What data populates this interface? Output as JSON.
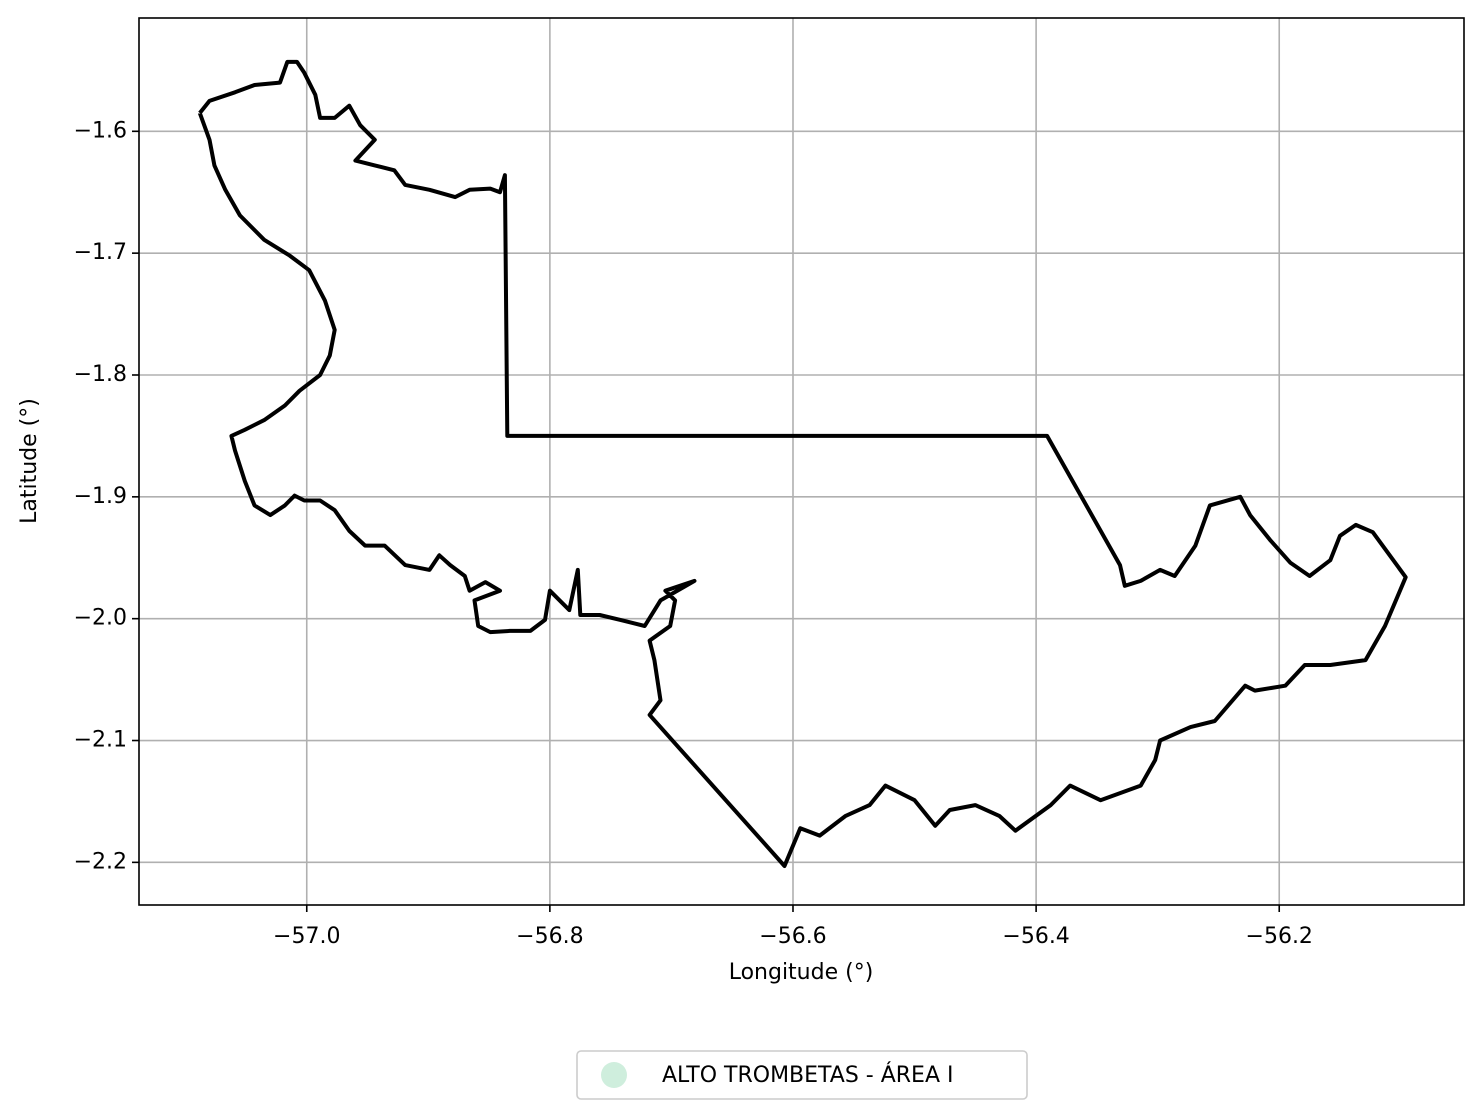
{
  "chart_data": {
    "type": "line",
    "xlabel": "Longitude (°)",
    "ylabel": "Latitude (°)",
    "xlim": [
      -57.138,
      -56.048
    ],
    "ylim": [
      -2.235,
      -1.507
    ],
    "xticks": [
      {
        "value": -57.0,
        "label": "−57.0"
      },
      {
        "value": -56.8,
        "label": "−56.8"
      },
      {
        "value": -56.6,
        "label": "−56.6"
      },
      {
        "value": -56.4,
        "label": "−56.4"
      },
      {
        "value": -56.2,
        "label": "−56.2"
      }
    ],
    "yticks": [
      {
        "value": -1.6,
        "label": "−1.6"
      },
      {
        "value": -1.7,
        "label": "−1.7"
      },
      {
        "value": -1.8,
        "label": "−1.8"
      },
      {
        "value": -1.9,
        "label": "−1.9"
      },
      {
        "value": -2.0,
        "label": "−2.0"
      },
      {
        "value": -2.1,
        "label": "−2.1"
      },
      {
        "value": -2.2,
        "label": "−2.2"
      }
    ],
    "grid": true,
    "legend": "lower center",
    "x": [
      -57.088,
      -57.08,
      -57.059,
      -57.043,
      -57.022,
      -57.016,
      -57.008,
      -57.002,
      -56.993,
      -56.989,
      -56.977,
      -56.965,
      -56.956,
      -56.944,
      -56.96,
      -56.944,
      -56.928,
      -56.919,
      -56.899,
      -56.878,
      -56.866,
      -56.849,
      -56.841,
      -56.837,
      -56.835,
      -56.391,
      -56.331,
      -56.327,
      -56.314,
      -56.298,
      -56.286,
      -56.269,
      -56.257,
      -56.232,
      -56.224,
      -56.207,
      -56.191,
      -56.175,
      -56.158,
      -56.15,
      -56.137,
      -56.123,
      -56.096,
      -56.113,
      -56.129,
      -56.158,
      -56.179,
      -56.195,
      -56.22,
      -56.228,
      -56.253,
      -56.273,
      -56.298,
      -56.302,
      -56.314,
      -56.347,
      -56.372,
      -56.388,
      -56.417,
      -56.43,
      -56.45,
      -56.471,
      -56.483,
      -56.5,
      -56.524,
      -56.537,
      -56.557,
      -56.578,
      -56.594,
      -56.607,
      -56.718,
      -56.709,
      -56.714,
      -56.718,
      -56.701,
      -56.697,
      -56.705,
      -56.681,
      -56.709,
      -56.722,
      -56.742,
      -56.759,
      -56.775,
      -56.777,
      -56.784,
      -56.8,
      -56.804,
      -56.816,
      -56.833,
      -56.849,
      -56.859,
      -56.862,
      -56.841,
      -56.853,
      -56.866,
      -56.87,
      -56.882,
      -56.891,
      -56.899,
      -56.919,
      -56.936,
      -56.952,
      -56.965,
      -56.977,
      -56.989,
      -57.002,
      -57.01,
      -57.018,
      -57.03,
      -57.043,
      -57.051,
      -57.059,
      -57.062,
      -57.051,
      -57.035,
      -57.018,
      -57.006,
      -56.989,
      -56.981,
      -56.977,
      -56.985,
      -56.998,
      -57.014,
      -57.035,
      -57.055,
      -57.067,
      -57.076,
      -57.08,
      -57.088
    ],
    "series": [
      {
        "name": "ALTO TROMBETAS - ÁREA I",
        "color": "#000000",
        "marker_color": "#cfeedd",
        "values": [
          -1.585,
          -1.575,
          -1.568,
          -1.562,
          -1.56,
          -1.543,
          -1.543,
          -1.552,
          -1.57,
          -1.589,
          -1.589,
          -1.579,
          -1.595,
          -1.607,
          -1.624,
          -1.628,
          -1.632,
          -1.644,
          -1.648,
          -1.654,
          -1.648,
          -1.647,
          -1.65,
          -1.636,
          -1.85,
          -1.85,
          -1.956,
          -1.973,
          -1.969,
          -1.96,
          -1.965,
          -1.94,
          -1.907,
          -1.9,
          -1.915,
          -1.936,
          -1.954,
          -1.965,
          -1.952,
          -1.932,
          -1.923,
          -1.929,
          -1.966,
          -2.006,
          -2.034,
          -2.038,
          -2.038,
          -2.055,
          -2.059,
          -2.055,
          -2.084,
          -2.089,
          -2.1,
          -2.116,
          -2.137,
          -2.149,
          -2.137,
          -2.153,
          -2.174,
          -2.162,
          -2.153,
          -2.157,
          -2.17,
          -2.149,
          -2.137,
          -2.153,
          -2.162,
          -2.178,
          -2.172,
          -2.203,
          -2.079,
          -2.067,
          -2.034,
          -2.018,
          -2.006,
          -1.985,
          -1.977,
          -1.969,
          -1.985,
          -2.006,
          -2.001,
          -1.997,
          -1.997,
          -1.96,
          -1.993,
          -1.977,
          -2.001,
          -2.01,
          -2.01,
          -2.011,
          -2.006,
          -1.985,
          -1.977,
          -1.97,
          -1.977,
          -1.965,
          -1.956,
          -1.948,
          -1.96,
          -1.956,
          -1.94,
          -1.94,
          -1.928,
          -1.911,
          -1.903,
          -1.903,
          -1.899,
          -1.907,
          -1.915,
          -1.907,
          -1.887,
          -1.862,
          -1.85,
          -1.845,
          -1.837,
          -1.825,
          -1.813,
          -1.8,
          -1.784,
          -1.763,
          -1.739,
          -1.714,
          -1.702,
          -1.689,
          -1.669,
          -1.648,
          -1.628,
          -1.607,
          -1.585
        ]
      }
    ]
  }
}
